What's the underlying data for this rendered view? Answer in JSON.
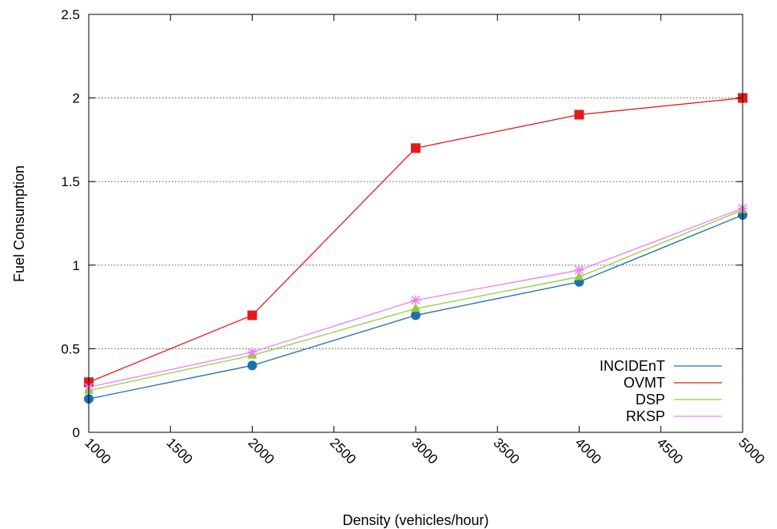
{
  "chart_data": {
    "type": "line",
    "xlabel": "Density (vehicles/hour)",
    "ylabel": "Fuel Consumption",
    "xlim": [
      1000,
      5000
    ],
    "ylim": [
      0,
      2.5
    ],
    "x_ticks": [
      1000,
      1500,
      2000,
      2500,
      3000,
      3500,
      4000,
      4500,
      5000
    ],
    "y_ticks": [
      "0",
      "0.5",
      "1",
      "1.5",
      "2",
      "2.5"
    ],
    "y_tick_values": [
      0,
      0.5,
      1,
      1.5,
      2,
      2.5
    ],
    "grid": "horizontal dotted",
    "legend_position": "bottom-right",
    "x": [
      1000,
      2000,
      3000,
      4000,
      5000
    ],
    "series": [
      {
        "name": "INCIDEnT",
        "values": [
          0.2,
          0.4,
          0.7,
          0.9,
          1.3
        ],
        "color": "#1f6fb0",
        "marker": "circle"
      },
      {
        "name": "OVMT",
        "values": [
          0.3,
          0.7,
          1.7,
          1.9,
          2.0
        ],
        "color": "#e31a1c",
        "marker": "square"
      },
      {
        "name": "DSP",
        "values": [
          0.25,
          0.46,
          0.74,
          0.93,
          1.33
        ],
        "color": "#8fd13b",
        "marker": "triangle"
      },
      {
        "name": "RKSP",
        "values": [
          0.27,
          0.48,
          0.79,
          0.97,
          1.34
        ],
        "color": "#ee82ee",
        "marker": "star"
      }
    ]
  }
}
